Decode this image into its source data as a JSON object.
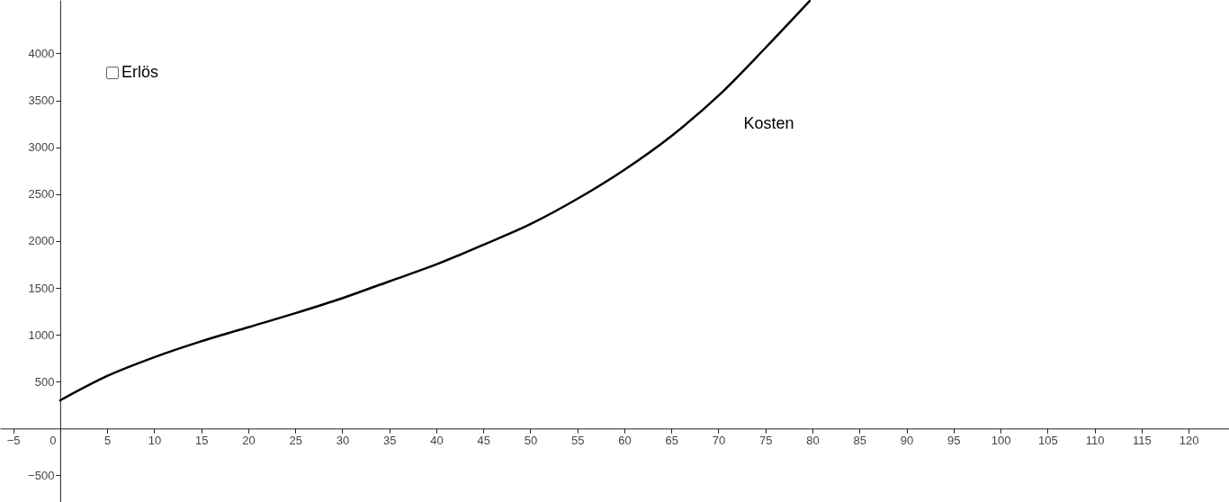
{
  "chart_data": {
    "type": "line",
    "x": [
      0,
      5,
      10,
      15,
      20,
      25,
      30,
      35,
      40,
      45,
      50,
      55,
      60,
      65,
      70,
      75,
      79.7
    ],
    "series": [
      {
        "name": "Kosten",
        "color": "#000000",
        "values": [
          300,
          560,
          760,
          930,
          1080,
          1230,
          1390,
          1570,
          1750,
          1960,
          2180,
          2450,
          2760,
          3120,
          3550,
          4060,
          4560
        ]
      }
    ],
    "xlim": [
      -6.4,
      124.3
    ],
    "ylim": [
      -784,
      4571
    ],
    "xticks": [
      {
        "value": -5,
        "label": "−5"
      },
      0,
      5,
      10,
      15,
      20,
      25,
      30,
      35,
      40,
      45,
      50,
      55,
      60,
      65,
      70,
      75,
      80,
      85,
      90,
      95,
      100,
      105,
      110,
      115,
      120
    ],
    "yticks": [
      {
        "value": -500,
        "label": "−500"
      },
      500,
      1000,
      1500,
      2000,
      2500,
      3000,
      3500,
      4000
    ],
    "annotations": [
      "Erlös"
    ],
    "grid": false,
    "marker": "none",
    "line_style": "solid"
  }
}
